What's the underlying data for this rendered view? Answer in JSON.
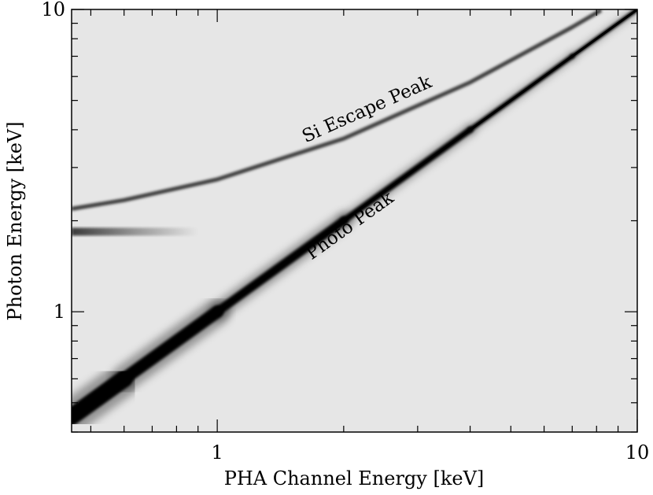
{
  "chart_data": {
    "type": "heatmap",
    "title": "",
    "xlabel": "PHA Channel Energy [keV]",
    "ylabel": "Photon Energy [keV]",
    "x_scale": "log",
    "y_scale": "log",
    "xlim": [
      0.45,
      10
    ],
    "ylim": [
      0.4,
      10
    ],
    "x_tick_labels": [
      {
        "value": 1,
        "label": "1"
      },
      {
        "value": 10,
        "label": "10"
      }
    ],
    "y_tick_labels": [
      {
        "value": 1,
        "label": "1"
      },
      {
        "value": 10,
        "label": "10"
      }
    ],
    "grid": false,
    "background_color": "#e6e6e6",
    "band_color": "#000000",
    "features": {
      "photo_peak": {
        "label": "Photo Peak",
        "x": [
          0.45,
          0.6,
          1,
          2,
          4,
          7,
          10
        ],
        "y": [
          0.45,
          0.6,
          1,
          2,
          4,
          7,
          10
        ]
      },
      "si_escape_peak": {
        "label": "Si Escape Peak",
        "x": [
          0.45,
          0.6,
          1,
          2,
          4,
          7,
          8.2
        ],
        "y": [
          2.19,
          2.34,
          2.74,
          3.74,
          5.74,
          8.74,
          9.94
        ]
      },
      "si_edge_tail": {
        "y": 1.84,
        "x": [
          0.45,
          0.9
        ]
      }
    }
  }
}
